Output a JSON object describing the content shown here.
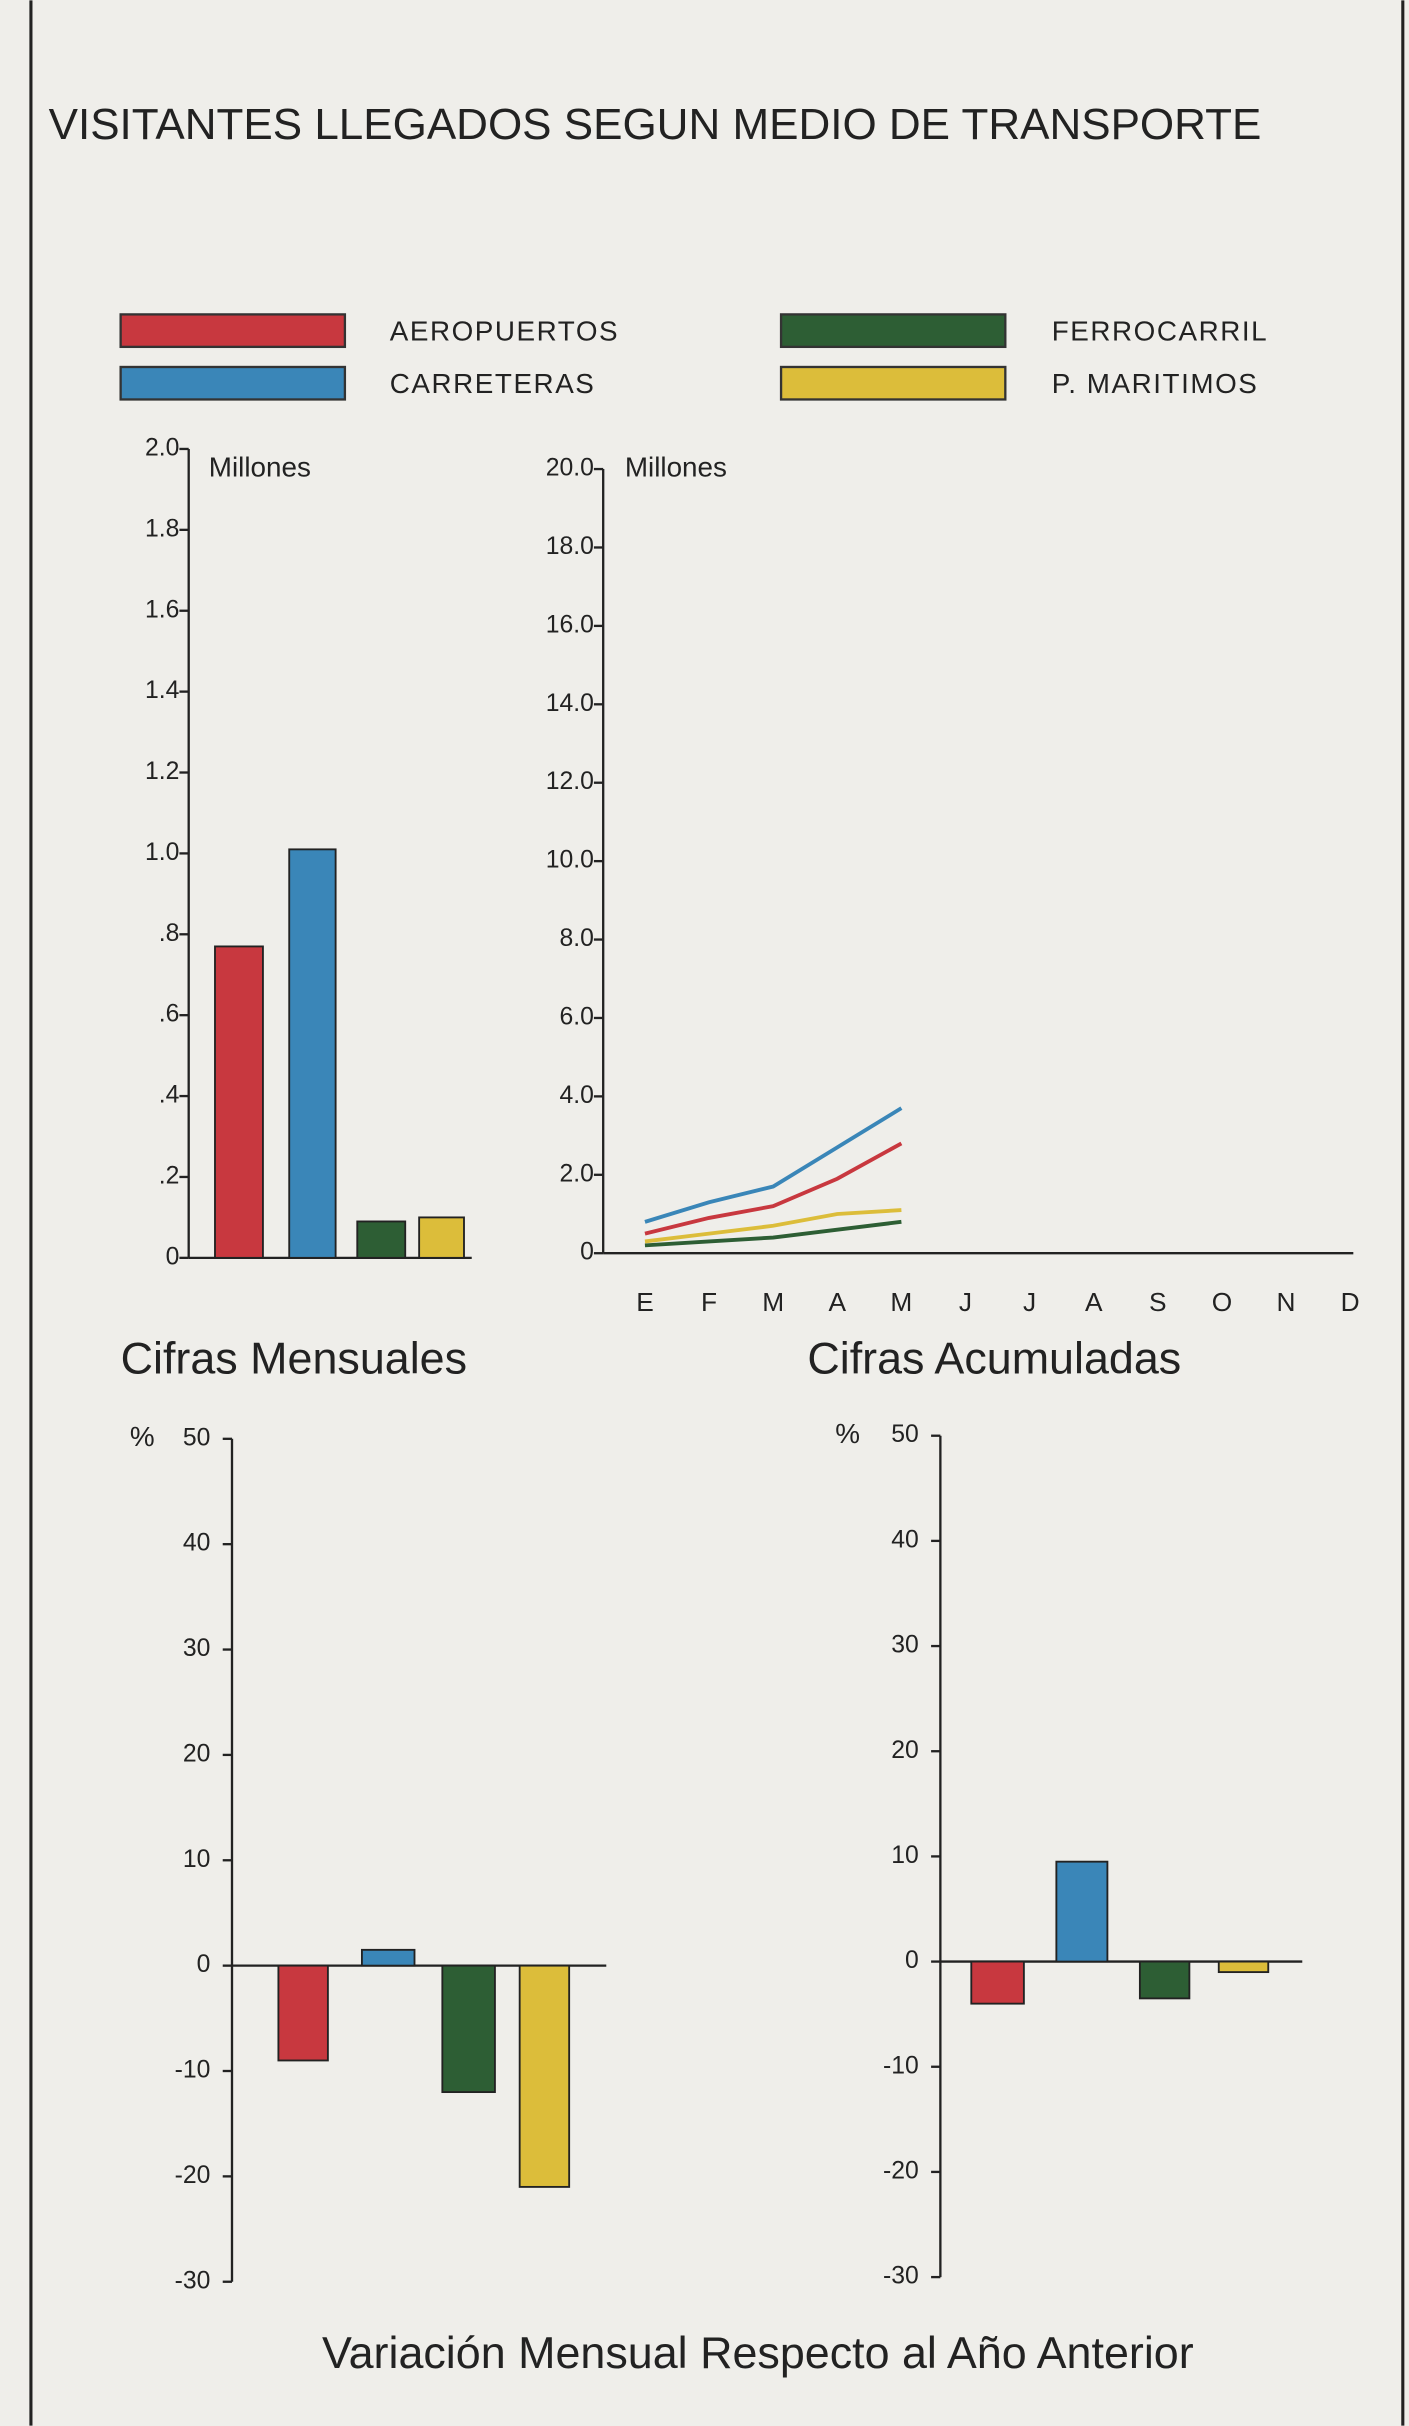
{
  "title": "VISITANTES LLEGADOS SEGUN MEDIO DE TRANSPORTE",
  "caption": "Variación Mensual Respecto al Año Anterior",
  "chart_data": [
    {
      "type": "bar",
      "title": "Cifras Mensuales",
      "y_label": "Millones",
      "values": [
        0.77,
        1.01,
        0.09,
        0.1
      ],
      "colors": [
        "#c8383f",
        "#3a86b8",
        "#2d5e34",
        "#dcbd3a"
      ],
      "ylim": [
        0,
        2
      ],
      "yticks": [
        0,
        {
          "value": 0.2,
          "label": ".2"
        },
        {
          "value": 0.4,
          "label": ".4"
        },
        {
          "value": 0.6,
          "label": ".6"
        },
        {
          "value": 0.8,
          "label": ".8"
        },
        {
          "value": 1,
          "label": "1.0"
        },
        1.2,
        1.4,
        1.6,
        1.8,
        {
          "value": 2,
          "label": "2.0"
        }
      ]
    },
    {
      "type": "line",
      "title": "Cifras Acumuladas",
      "y_label": "Millones",
      "categories": [
        "E",
        "F",
        "M",
        "A",
        "M",
        "J",
        "J",
        "A",
        "S",
        "O",
        "N",
        "D"
      ],
      "series": [
        {
          "name": "AEROPUERTOS",
          "color": "#c8383f",
          "values": [
            0.5,
            0.9,
            1.2,
            1.9,
            2.8,
            null,
            null,
            null,
            null,
            null,
            null,
            null
          ]
        },
        {
          "name": "CARRETERAS",
          "color": "#3a86b8",
          "values": [
            0.8,
            1.3,
            1.7,
            2.7,
            3.7,
            null,
            null,
            null,
            null,
            null,
            null,
            null
          ]
        },
        {
          "name": "FERROCARRIL",
          "color": "#2d5e34",
          "values": [
            0.2,
            0.3,
            0.4,
            0.6,
            0.8,
            null,
            null,
            null,
            null,
            null,
            null,
            null
          ]
        },
        {
          "name": "P. MARITIMOS",
          "color": "#dcbd3a",
          "values": [
            0.3,
            0.5,
            0.7,
            1.0,
            1.1,
            null,
            null,
            null,
            null,
            null,
            null,
            null
          ]
        }
      ],
      "ylim": [
        0,
        20
      ],
      "yticks": [
        0,
        {
          "value": 2,
          "label": "2.0"
        },
        {
          "value": 4,
          "label": "4.0"
        },
        {
          "value": 6,
          "label": "6.0"
        },
        {
          "value": 8,
          "label": "8.0"
        },
        {
          "value": 10,
          "label": "10.0"
        },
        {
          "value": 12,
          "label": "12.0"
        },
        {
          "value": 14,
          "label": "14.0"
        },
        {
          "value": 16,
          "label": "16.0"
        },
        {
          "value": 18,
          "label": "18.0"
        },
        {
          "value": 20,
          "label": "20.0"
        }
      ]
    },
    {
      "type": "bar",
      "y_label": "%",
      "values": [
        -9,
        1.5,
        -12,
        -21
      ],
      "colors": [
        "#c8383f",
        "#3a86b8",
        "#2d5e34",
        "#dcbd3a"
      ],
      "ylim": [
        -30,
        50
      ],
      "yticks": [
        -30,
        -20,
        -10,
        0,
        10,
        20,
        30,
        40,
        50
      ]
    },
    {
      "type": "bar",
      "y_label": "%",
      "values": [
        -4,
        9.5,
        -3.5,
        -1
      ],
      "colors": [
        "#c8383f",
        "#3a86b8",
        "#2d5e34",
        "#dcbd3a"
      ],
      "ylim": [
        -30,
        50
      ],
      "yticks": [
        -30,
        -20,
        -10,
        0,
        10,
        20,
        30,
        40,
        50
      ]
    }
  ]
}
